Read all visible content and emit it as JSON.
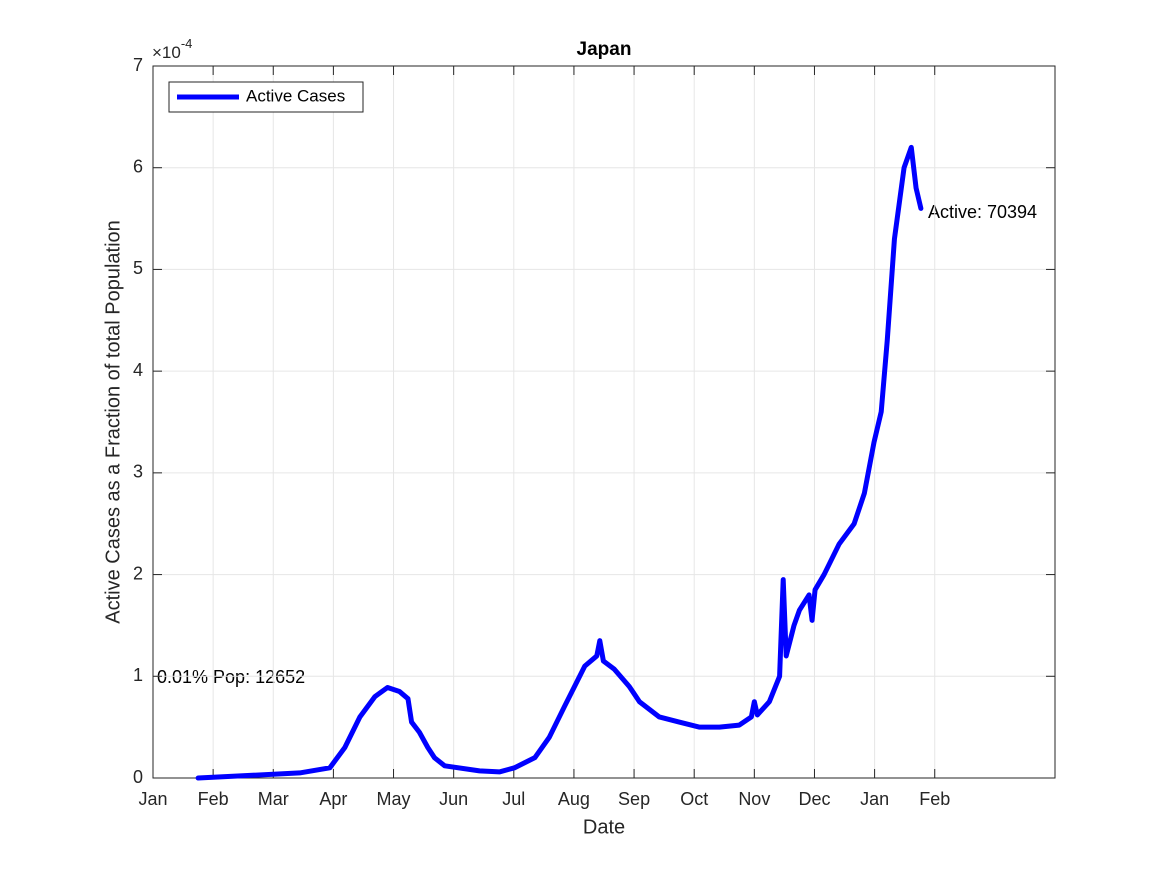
{
  "chart_data": {
    "type": "line",
    "title": "Japan",
    "x_label": "Date",
    "y_label": "Active Cases as a Fraction of total Population",
    "y_exponent_base": "×10",
    "y_exponent_power": "-4",
    "x": [
      0.75,
      2.44,
      2.94,
      3.19,
      3.44,
      3.69,
      3.9,
      4.1,
      4.24,
      4.3,
      4.43,
      4.57,
      4.68,
      4.85,
      5.43,
      5.76,
      6.01,
      6.35,
      6.59,
      6.84,
      7.01,
      7.18,
      7.38,
      7.43,
      7.49,
      7.67,
      7.92,
      8.09,
      8.42,
      8.75,
      9.09,
      9.42,
      9.75,
      9.95,
      10.0,
      10.05,
      10.25,
      10.42,
      10.48,
      10.53,
      10.66,
      10.75,
      10.91,
      10.96,
      11.01,
      11.16,
      11.41,
      11.66,
      11.83,
      11.99,
      12.11,
      12.21,
      12.33,
      12.49,
      12.61,
      12.69,
      12.77
    ],
    "series": [
      {
        "name": "Active Cases",
        "color": "#0000ff",
        "values": [
          0,
          0.05,
          0.1,
          0.3,
          0.6,
          0.8,
          0.89,
          0.85,
          0.78,
          0.55,
          0.45,
          0.3,
          0.2,
          0.12,
          0.07,
          0.06,
          0.1,
          0.2,
          0.4,
          0.7,
          0.9,
          1.1,
          1.2,
          1.35,
          1.15,
          1.07,
          0.9,
          0.75,
          0.6,
          0.55,
          0.5,
          0.5,
          0.52,
          0.6,
          0.75,
          0.62,
          0.75,
          1.0,
          1.95,
          1.2,
          1.5,
          1.65,
          1.8,
          1.55,
          1.85,
          2.0,
          2.3,
          2.5,
          2.8,
          3.3,
          3.6,
          4.3,
          5.3,
          6.0,
          6.2,
          5.8,
          5.6
        ]
      }
    ],
    "xlim": [
      0,
      15
    ],
    "xticks": [
      {
        "value": 0,
        "label": "Jan"
      },
      {
        "value": 1,
        "label": "Feb"
      },
      {
        "value": 2,
        "label": "Mar"
      },
      {
        "value": 3,
        "label": "Apr"
      },
      {
        "value": 4,
        "label": "May"
      },
      {
        "value": 5,
        "label": "Jun"
      },
      {
        "value": 6,
        "label": "Jul"
      },
      {
        "value": 7,
        "label": "Aug"
      },
      {
        "value": 8,
        "label": "Sep"
      },
      {
        "value": 9,
        "label": "Oct"
      },
      {
        "value": 10,
        "label": "Nov"
      },
      {
        "value": 11,
        "label": "Dec"
      },
      {
        "value": 12,
        "label": "Jan"
      },
      {
        "value": 13,
        "label": "Feb"
      }
    ],
    "ylim": [
      0,
      7
    ],
    "yticks": [
      0,
      1,
      2,
      3,
      4,
      5,
      6,
      7
    ],
    "grid": true,
    "legend": "upper left",
    "annotations": [
      {
        "text": "0.01% Pop: 12652"
      },
      {
        "text": "Active: 70394"
      }
    ]
  }
}
